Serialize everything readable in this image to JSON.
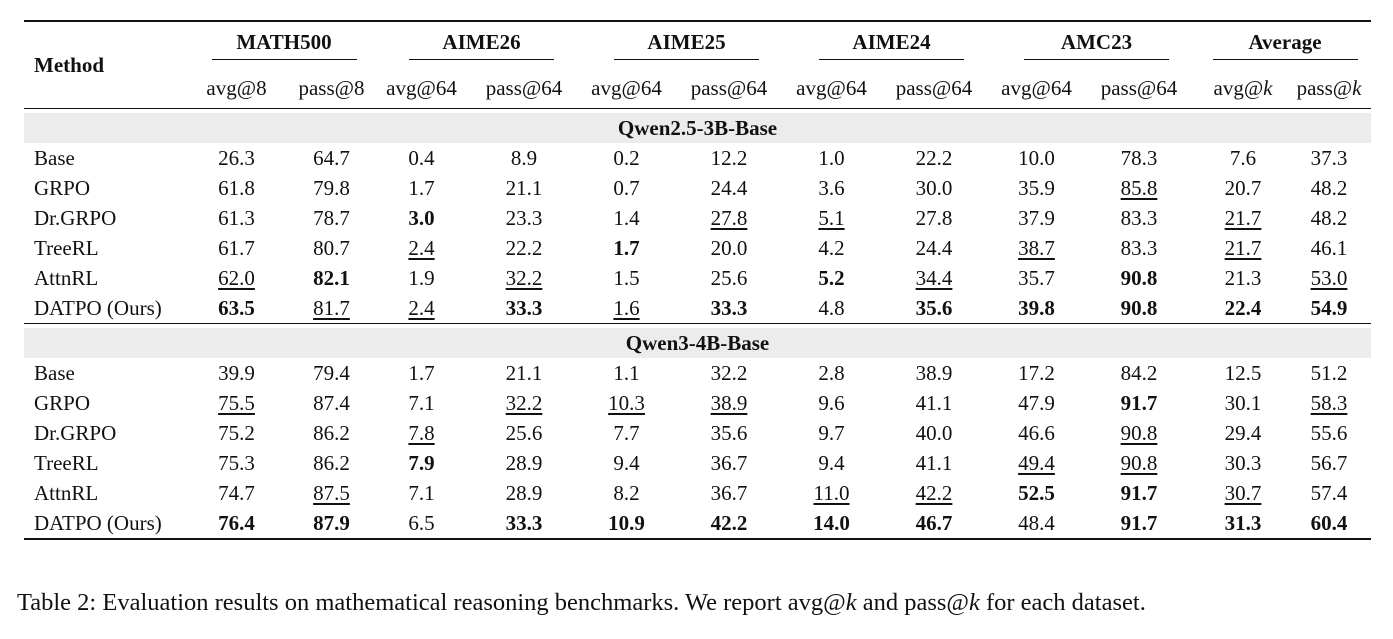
{
  "table": {
    "method_header": "Method",
    "groups": [
      "MATH500",
      "AIME26",
      "AIME25",
      "AIME24",
      "AMC23",
      "Average"
    ],
    "subheaders": [
      "avg@8",
      "pass@8",
      "avg@64",
      "pass@64",
      "avg@64",
      "pass@64",
      "avg@64",
      "pass@64",
      "avg@64",
      "pass@64",
      "avg@k",
      "pass@k"
    ],
    "sections": [
      {
        "title": "Qwen2.5-3B-Base",
        "rows": [
          {
            "method": "Base",
            "values": [
              "26.3",
              "64.7",
              "0.4",
              "8.9",
              "0.2",
              "12.2",
              "1.0",
              "22.2",
              "10.0",
              "78.3",
              "7.6",
              "37.3"
            ],
            "styles": [
              "",
              "",
              "",
              "",
              "",
              "",
              "",
              "",
              "",
              "",
              "",
              ""
            ]
          },
          {
            "method": "GRPO",
            "values": [
              "61.8",
              "79.8",
              "1.7",
              "21.1",
              "0.7",
              "24.4",
              "3.6",
              "30.0",
              "35.9",
              "85.8",
              "20.7",
              "48.2"
            ],
            "styles": [
              "",
              "",
              "",
              "",
              "",
              "",
              "",
              "",
              "",
              "u",
              "",
              ""
            ]
          },
          {
            "method": "Dr.GRPO",
            "values": [
              "61.3",
              "78.7",
              "3.0",
              "23.3",
              "1.4",
              "27.8",
              "5.1",
              "27.8",
              "37.9",
              "83.3",
              "21.7",
              "48.2"
            ],
            "styles": [
              "",
              "",
              "b",
              "",
              "",
              "u",
              "u",
              "",
              "",
              "",
              "u",
              ""
            ]
          },
          {
            "method": "TreeRL",
            "values": [
              "61.7",
              "80.7",
              "2.4",
              "22.2",
              "1.7",
              "20.0",
              "4.2",
              "24.4",
              "38.7",
              "83.3",
              "21.7",
              "46.1"
            ],
            "styles": [
              "",
              "",
              "u",
              "",
              "b",
              "",
              "",
              "",
              "u",
              "",
              "u",
              ""
            ]
          },
          {
            "method": "AttnRL",
            "values": [
              "62.0",
              "82.1",
              "1.9",
              "32.2",
              "1.5",
              "25.6",
              "5.2",
              "34.4",
              "35.7",
              "90.8",
              "21.3",
              "53.0"
            ],
            "styles": [
              "u",
              "b",
              "",
              "u",
              "",
              "",
              "b",
              "u",
              "",
              "b",
              "",
              "u"
            ]
          },
          {
            "method": "DATPO (Ours)",
            "values": [
              "63.5",
              "81.7",
              "2.4",
              "33.3",
              "1.6",
              "33.3",
              "4.8",
              "35.6",
              "39.8",
              "90.8",
              "22.4",
              "54.9"
            ],
            "styles": [
              "b",
              "u",
              "u",
              "b",
              "u",
              "b",
              "",
              "b",
              "b",
              "b",
              "b",
              "b"
            ]
          }
        ]
      },
      {
        "title": "Qwen3-4B-Base",
        "rows": [
          {
            "method": "Base",
            "values": [
              "39.9",
              "79.4",
              "1.7",
              "21.1",
              "1.1",
              "32.2",
              "2.8",
              "38.9",
              "17.2",
              "84.2",
              "12.5",
              "51.2"
            ],
            "styles": [
              "",
              "",
              "",
              "",
              "",
              "",
              "",
              "",
              "",
              "",
              "",
              ""
            ]
          },
          {
            "method": "GRPO",
            "values": [
              "75.5",
              "87.4",
              "7.1",
              "32.2",
              "10.3",
              "38.9",
              "9.6",
              "41.1",
              "47.9",
              "91.7",
              "30.1",
              "58.3"
            ],
            "styles": [
              "u",
              "",
              "",
              "u",
              "u",
              "u",
              "",
              "",
              "",
              "b",
              "",
              "u"
            ]
          },
          {
            "method": "Dr.GRPO",
            "values": [
              "75.2",
              "86.2",
              "7.8",
              "25.6",
              "7.7",
              "35.6",
              "9.7",
              "40.0",
              "46.6",
              "90.8",
              "29.4",
              "55.6"
            ],
            "styles": [
              "",
              "",
              "u",
              "",
              "",
              "",
              "",
              "",
              "",
              "u",
              "",
              ""
            ]
          },
          {
            "method": "TreeRL",
            "values": [
              "75.3",
              "86.2",
              "7.9",
              "28.9",
              "9.4",
              "36.7",
              "9.4",
              "41.1",
              "49.4",
              "90.8",
              "30.3",
              "56.7"
            ],
            "styles": [
              "",
              "",
              "b",
              "",
              "",
              "",
              "",
              "",
              "u",
              "u",
              "",
              ""
            ]
          },
          {
            "method": "AttnRL",
            "values": [
              "74.7",
              "87.5",
              "7.1",
              "28.9",
              "8.2",
              "36.7",
              "11.0",
              "42.2",
              "52.5",
              "91.7",
              "30.7",
              "57.4"
            ],
            "styles": [
              "",
              "u",
              "",
              "",
              "",
              "",
              "u",
              "u",
              "b",
              "b",
              "u",
              ""
            ]
          },
          {
            "method": "DATPO (Ours)",
            "values": [
              "76.4",
              "87.9",
              "6.5",
              "33.3",
              "10.9",
              "42.2",
              "14.0",
              "46.7",
              "48.4",
              "91.7",
              "31.3",
              "60.4"
            ],
            "styles": [
              "b",
              "b",
              "",
              "b",
              "b",
              "b",
              "b",
              "b",
              "",
              "b",
              "b",
              "b"
            ]
          }
        ]
      }
    ]
  },
  "caption": "Table 2: Evaluation results on mathematical reasoning benchmarks. We report avg@k and pass@k for each dataset."
}
